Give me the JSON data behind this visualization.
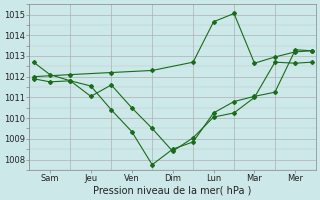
{
  "xlabel": "Pression niveau de la mer( hPa )",
  "background_color": "#cde8e8",
  "line_color": "#1a6b1a",
  "grid_color": "#b0b0b0",
  "ylim": [
    1007.5,
    1015.5
  ],
  "yticks": [
    1008,
    1009,
    1010,
    1011,
    1012,
    1013,
    1014,
    1015
  ],
  "x_labels": [
    "Sam",
    "Jeu",
    "Ven",
    "Dim",
    "Lun",
    "Mar",
    "Mer"
  ],
  "x_tick_positions": [
    0.5,
    1.5,
    2.5,
    3.5,
    4.5,
    5.5,
    6.5
  ],
  "xlim": [
    0,
    7
  ],
  "line1_x": [
    0.1,
    0.5,
    1.0,
    1.5,
    2.0,
    2.5,
    3.0,
    3.5,
    4.0,
    4.5,
    5.0,
    5.5,
    6.0,
    6.5,
    6.9
  ],
  "line1_y": [
    1012.7,
    1012.1,
    1011.8,
    1011.05,
    1011.6,
    1010.5,
    1009.5,
    1008.4,
    1009.05,
    1010.05,
    1010.25,
    1011.0,
    1012.7,
    1012.65,
    1012.7
  ],
  "line2_x": [
    0.1,
    0.5,
    1.0,
    1.5,
    2.0,
    2.5,
    3.0,
    3.5,
    4.0,
    4.5,
    5.0,
    5.5,
    6.0,
    6.5,
    6.9
  ],
  "line2_y": [
    1011.9,
    1011.75,
    1011.8,
    1011.55,
    1010.4,
    1009.35,
    1007.75,
    1008.5,
    1008.85,
    1010.25,
    1010.8,
    1011.05,
    1011.25,
    1013.3,
    1013.25
  ],
  "line3_x": [
    0.1,
    1.0,
    2.0,
    3.0,
    4.0,
    4.5,
    5.0,
    5.5,
    6.0,
    6.5,
    6.9
  ],
  "line3_y": [
    1012.0,
    1012.1,
    1012.2,
    1012.3,
    1012.7,
    1014.65,
    1015.05,
    1012.65,
    1012.95,
    1013.2,
    1013.25
  ],
  "figsize": [
    3.2,
    2.0
  ],
  "dpi": 100
}
